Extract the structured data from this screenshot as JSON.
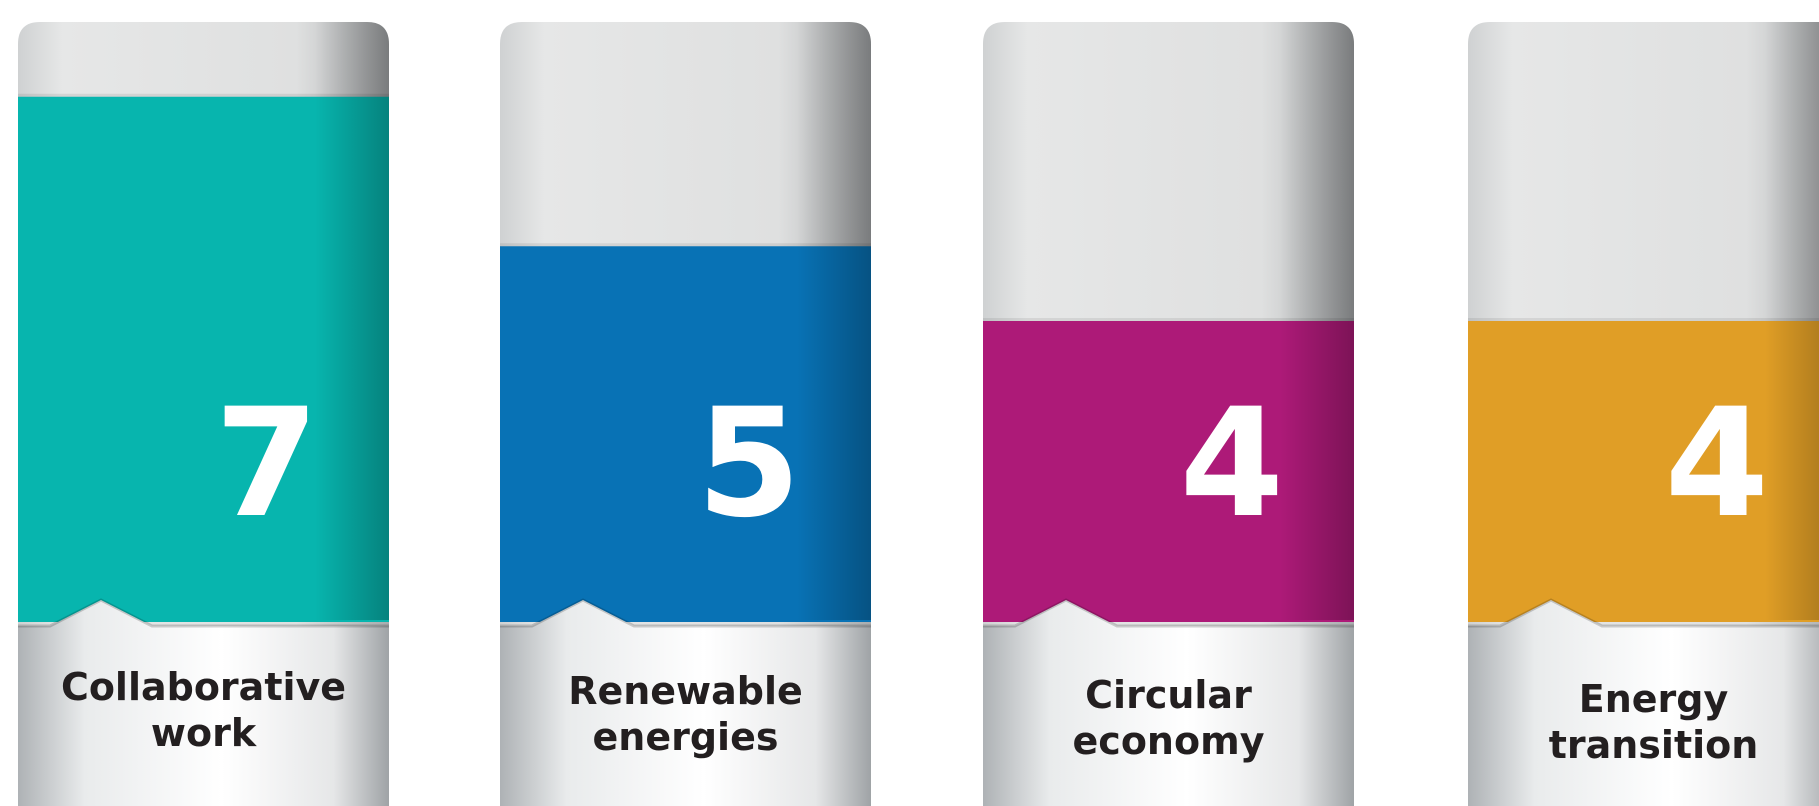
{
  "chart_data": {
    "type": "bar",
    "title": "",
    "xlabel": "",
    "ylabel": "",
    "grid": false,
    "legend": "none",
    "categories": [
      "Collaborative work",
      "Renewable energies",
      "Circular economy",
      "Energy transition"
    ],
    "label_lines": [
      [
        "Collaborative",
        "work"
      ],
      [
        "Renewable",
        "energies"
      ],
      [
        "Circular",
        "economy"
      ],
      [
        "Energy",
        "transition"
      ]
    ],
    "values": [
      7,
      5,
      4,
      4
    ],
    "value_labels": [
      "7",
      "5",
      "4",
      "4"
    ],
    "ylim": [
      0,
      8
    ],
    "colors": [
      "#07b5ae",
      "#0872b5",
      "#ad1a78",
      "#e09e26"
    ],
    "track_color": "#dfe0e0",
    "base_color": "#e6e8e9"
  }
}
